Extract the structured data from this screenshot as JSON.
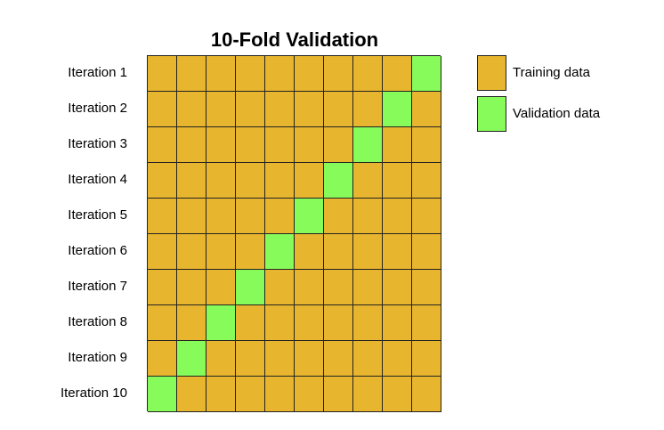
{
  "title": "10-Fold Validation",
  "colors": {
    "training": "#e8b62e",
    "validation": "#86fb5a",
    "border": "#222222"
  },
  "folds": 10,
  "iterations": [
    {
      "label": "Iteration 1",
      "validation_fold": 10
    },
    {
      "label": "Iteration 2",
      "validation_fold": 9
    },
    {
      "label": "Iteration 3",
      "validation_fold": 8
    },
    {
      "label": "Iteration 4",
      "validation_fold": 7
    },
    {
      "label": "Iteration 5",
      "validation_fold": 6
    },
    {
      "label": "Iteration 6",
      "validation_fold": 5
    },
    {
      "label": "Iteration 7",
      "validation_fold": 4
    },
    {
      "label": "Iteration 8",
      "validation_fold": 3
    },
    {
      "label": "Iteration 9",
      "validation_fold": 2
    },
    {
      "label": "Iteration 10",
      "validation_fold": 1
    }
  ],
  "legend": {
    "training_label": "Training data",
    "validation_label": "Validation data"
  }
}
